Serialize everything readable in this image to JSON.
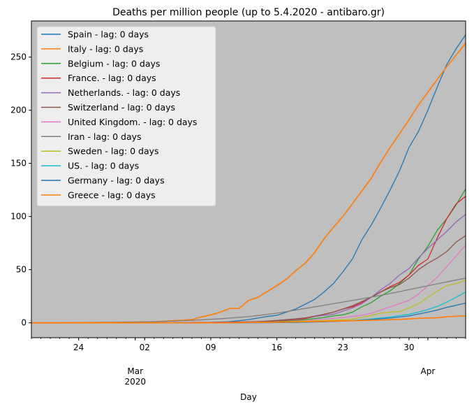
{
  "chart_data": {
    "type": "line",
    "title": "Deaths per million people (up to 5.4.2020 - antibaro.gr)",
    "xlabel": "Day",
    "ylabel": "",
    "x_start": "2020-02-19",
    "xlim": [
      "2020-02-19",
      "2020-04-05"
    ],
    "ylim": [
      -14,
      284
    ],
    "grid": false,
    "legend_position": "upper-left",
    "plot_background": "#bfbfbf",
    "x_major_ticks": [
      {
        "date": "2020-02-24",
        "label": "24"
      },
      {
        "date": "2020-03-02",
        "label": "02"
      },
      {
        "date": "2020-03-09",
        "label": "09"
      },
      {
        "date": "2020-03-16",
        "label": "16"
      },
      {
        "date": "2020-03-23",
        "label": "23"
      },
      {
        "date": "2020-03-30",
        "label": "30"
      }
    ],
    "x_month_labels": [
      {
        "date": "2020-03-01",
        "label": "Mar",
        "year": "2020"
      },
      {
        "date": "2020-04-01",
        "label": "Apr",
        "year": ""
      }
    ],
    "y_ticks": [
      0,
      50,
      100,
      150,
      200,
      250
    ],
    "y_tick_labels": [
      "0",
      "50",
      "100",
      "150",
      "200",
      "250"
    ],
    "series": [
      {
        "name": "Spain - lag: 0 days",
        "color": "#1f77b4",
        "points": [
          [
            "2020-02-19",
            0
          ],
          [
            "2020-03-03",
            0
          ],
          [
            "2020-03-09",
            0.3
          ],
          [
            "2020-03-11",
            1
          ],
          [
            "2020-03-13",
            3
          ],
          [
            "2020-03-14",
            4.5
          ],
          [
            "2020-03-15",
            6
          ],
          [
            "2020-03-16",
            7
          ],
          [
            "2020-03-17",
            10
          ],
          [
            "2020-03-18",
            13
          ],
          [
            "2020-03-19",
            17.5
          ],
          [
            "2020-03-20",
            22
          ],
          [
            "2020-03-21",
            29
          ],
          [
            "2020-03-22",
            37
          ],
          [
            "2020-03-23",
            48
          ],
          [
            "2020-03-24",
            60
          ],
          [
            "2020-03-25",
            78
          ],
          [
            "2020-03-26",
            92
          ],
          [
            "2020-03-27",
            108
          ],
          [
            "2020-03-28",
            125
          ],
          [
            "2020-03-29",
            143
          ],
          [
            "2020-03-30",
            165
          ],
          [
            "2020-03-31",
            180
          ],
          [
            "2020-04-01",
            200
          ],
          [
            "2020-04-02",
            222
          ],
          [
            "2020-04-03",
            243
          ],
          [
            "2020-04-04",
            258
          ],
          [
            "2020-04-05",
            271
          ]
        ]
      },
      {
        "name": "Italy - lag: 0 days",
        "color": "#ff7f0e",
        "points": [
          [
            "2020-02-19",
            0
          ],
          [
            "2020-02-22",
            0
          ],
          [
            "2020-02-25",
            0.2
          ],
          [
            "2020-02-28",
            0.5
          ],
          [
            "2020-03-01",
            0.7
          ],
          [
            "2020-03-03",
            1
          ],
          [
            "2020-03-05",
            2
          ],
          [
            "2020-03-07",
            3
          ],
          [
            "2020-03-08",
            5.5
          ],
          [
            "2020-03-09",
            7.5
          ],
          [
            "2020-03-10",
            10
          ],
          [
            "2020-03-11",
            13.5
          ],
          [
            "2020-03-12",
            13.5
          ],
          [
            "2020-03-13",
            21
          ],
          [
            "2020-03-14",
            24
          ],
          [
            "2020-03-15",
            29.5
          ],
          [
            "2020-03-16",
            35
          ],
          [
            "2020-03-17",
            41
          ],
          [
            "2020-03-18",
            49
          ],
          [
            "2020-03-19",
            56
          ],
          [
            "2020-03-20",
            66
          ],
          [
            "2020-03-21",
            79
          ],
          [
            "2020-03-22",
            90
          ],
          [
            "2020-03-23",
            100
          ],
          [
            "2020-03-24",
            112
          ],
          [
            "2020-03-25",
            124
          ],
          [
            "2020-03-26",
            136
          ],
          [
            "2020-03-27",
            151
          ],
          [
            "2020-03-28",
            165
          ],
          [
            "2020-03-29",
            178
          ],
          [
            "2020-03-30",
            191
          ],
          [
            "2020-03-31",
            205
          ],
          [
            "2020-04-01",
            217
          ],
          [
            "2020-04-02",
            229
          ],
          [
            "2020-04-03",
            241
          ],
          [
            "2020-04-04",
            252
          ],
          [
            "2020-04-05",
            263
          ]
        ]
      },
      {
        "name": "Belgium - lag: 0 days",
        "color": "#2ca02c",
        "points": [
          [
            "2020-02-19",
            0
          ],
          [
            "2020-03-10",
            0
          ],
          [
            "2020-03-14",
            0.5
          ],
          [
            "2020-03-18",
            2
          ],
          [
            "2020-03-20",
            4
          ],
          [
            "2020-03-21",
            5
          ],
          [
            "2020-03-22",
            6.5
          ],
          [
            "2020-03-23",
            7.5
          ],
          [
            "2020-03-24",
            10
          ],
          [
            "2020-03-25",
            15
          ],
          [
            "2020-03-26",
            19
          ],
          [
            "2020-03-27",
            25
          ],
          [
            "2020-03-28",
            30
          ],
          [
            "2020-03-29",
            37
          ],
          [
            "2020-03-30",
            45
          ],
          [
            "2020-03-31",
            60
          ],
          [
            "2020-04-01",
            72
          ],
          [
            "2020-04-02",
            87
          ],
          [
            "2020-04-03",
            98
          ],
          [
            "2020-04-04",
            111
          ],
          [
            "2020-04-05",
            126
          ]
        ]
      },
      {
        "name": "France. - lag: 0 days",
        "color": "#d62728",
        "points": [
          [
            "2020-02-19",
            0
          ],
          [
            "2020-03-06",
            0.1
          ],
          [
            "2020-03-10",
            0.5
          ],
          [
            "2020-03-14",
            1
          ],
          [
            "2020-03-16",
            2
          ],
          [
            "2020-03-18",
            3
          ],
          [
            "2020-03-19",
            4
          ],
          [
            "2020-03-20",
            6
          ],
          [
            "2020-03-21",
            8
          ],
          [
            "2020-03-22",
            10
          ],
          [
            "2020-03-23",
            13
          ],
          [
            "2020-03-24",
            15
          ],
          [
            "2020-03-25",
            19
          ],
          [
            "2020-03-26",
            24
          ],
          [
            "2020-03-27",
            29
          ],
          [
            "2020-03-28",
            34
          ],
          [
            "2020-03-29",
            38
          ],
          [
            "2020-03-30",
            45
          ],
          [
            "2020-03-31",
            54
          ],
          [
            "2020-04-01",
            60
          ],
          [
            "2020-04-02",
            80
          ],
          [
            "2020-04-03",
            98
          ],
          [
            "2020-04-04",
            112
          ],
          [
            "2020-04-05",
            119
          ]
        ]
      },
      {
        "name": "Netherlands. - lag: 0 days",
        "color": "#9467bd",
        "points": [
          [
            "2020-02-19",
            0
          ],
          [
            "2020-03-08",
            0
          ],
          [
            "2020-03-12",
            0.3
          ],
          [
            "2020-03-15",
            1.5
          ],
          [
            "2020-03-18",
            3.5
          ],
          [
            "2020-03-20",
            6
          ],
          [
            "2020-03-22",
            8
          ],
          [
            "2020-03-23",
            11
          ],
          [
            "2020-03-24",
            14
          ],
          [
            "2020-03-25",
            18
          ],
          [
            "2020-03-26",
            24
          ],
          [
            "2020-03-27",
            31
          ],
          [
            "2020-03-28",
            37
          ],
          [
            "2020-03-29",
            45
          ],
          [
            "2020-03-30",
            51
          ],
          [
            "2020-03-31",
            61
          ],
          [
            "2020-04-01",
            70
          ],
          [
            "2020-04-02",
            78
          ],
          [
            "2020-04-03",
            86
          ],
          [
            "2020-04-04",
            95
          ],
          [
            "2020-04-05",
            102
          ]
        ]
      },
      {
        "name": "Switzerland - lag: 0 days",
        "color": "#8c564b",
        "points": [
          [
            "2020-02-19",
            0
          ],
          [
            "2020-03-08",
            0
          ],
          [
            "2020-03-12",
            0.5
          ],
          [
            "2020-03-15",
            1.5
          ],
          [
            "2020-03-17",
            3
          ],
          [
            "2020-03-19",
            4.5
          ],
          [
            "2020-03-21",
            8
          ],
          [
            "2020-03-22",
            10
          ],
          [
            "2020-03-23",
            13
          ],
          [
            "2020-03-24",
            16
          ],
          [
            "2020-03-25",
            20
          ],
          [
            "2020-03-26",
            24
          ],
          [
            "2020-03-27",
            29
          ],
          [
            "2020-03-28",
            33
          ],
          [
            "2020-03-29",
            36
          ],
          [
            "2020-03-30",
            42
          ],
          [
            "2020-03-31",
            50
          ],
          [
            "2020-04-01",
            56
          ],
          [
            "2020-04-02",
            61
          ],
          [
            "2020-04-03",
            67
          ],
          [
            "2020-04-04",
            76
          ],
          [
            "2020-04-05",
            82
          ]
        ]
      },
      {
        "name": "United Kingdom. - lag: 0 days",
        "color": "#e377c2",
        "points": [
          [
            "2020-02-19",
            0
          ],
          [
            "2020-03-06",
            0
          ],
          [
            "2020-03-10",
            0.2
          ],
          [
            "2020-03-14",
            0.5
          ],
          [
            "2020-03-17",
            1
          ],
          [
            "2020-03-19",
            2
          ],
          [
            "2020-03-21",
            3.5
          ],
          [
            "2020-03-23",
            5
          ],
          [
            "2020-03-25",
            7
          ],
          [
            "2020-03-26",
            9
          ],
          [
            "2020-03-27",
            12
          ],
          [
            "2020-03-28",
            15
          ],
          [
            "2020-03-29",
            18
          ],
          [
            "2020-03-30",
            21
          ],
          [
            "2020-03-31",
            27
          ],
          [
            "2020-04-01",
            35
          ],
          [
            "2020-04-02",
            43
          ],
          [
            "2020-04-03",
            53
          ],
          [
            "2020-04-04",
            63
          ],
          [
            "2020-04-05",
            73
          ]
        ]
      },
      {
        "name": "Iran - lag: 0 days",
        "color": "#7f7f7f",
        "points": [
          [
            "2020-02-19",
            0
          ],
          [
            "2020-02-24",
            0.1
          ],
          [
            "2020-02-27",
            0.3
          ],
          [
            "2020-03-01",
            0.7
          ],
          [
            "2020-03-04",
            1.3
          ],
          [
            "2020-03-07",
            2.3
          ],
          [
            "2020-03-10",
            3.8
          ],
          [
            "2020-03-13",
            5.8
          ],
          [
            "2020-03-16",
            9
          ],
          [
            "2020-03-19",
            13.5
          ],
          [
            "2020-03-22",
            18
          ],
          [
            "2020-03-25",
            22.5
          ],
          [
            "2020-03-28",
            27.5
          ],
          [
            "2020-03-31",
            33
          ],
          [
            "2020-04-03",
            38.5
          ],
          [
            "2020-04-05",
            42
          ]
        ]
      },
      {
        "name": "Sweden - lag: 0 days",
        "color": "#bcbd22",
        "points": [
          [
            "2020-02-19",
            0
          ],
          [
            "2020-03-10",
            0
          ],
          [
            "2020-03-15",
            0.5
          ],
          [
            "2020-03-19",
            1.5
          ],
          [
            "2020-03-22",
            2.5
          ],
          [
            "2020-03-24",
            3.5
          ],
          [
            "2020-03-25",
            5
          ],
          [
            "2020-03-26",
            7
          ],
          [
            "2020-03-27",
            9
          ],
          [
            "2020-03-28",
            10
          ],
          [
            "2020-03-29",
            10.5
          ],
          [
            "2020-03-30",
            14
          ],
          [
            "2020-03-31",
            18
          ],
          [
            "2020-04-01",
            24
          ],
          [
            "2020-04-02",
            30
          ],
          [
            "2020-04-03",
            35
          ],
          [
            "2020-04-04",
            37
          ],
          [
            "2020-04-05",
            40
          ]
        ]
      },
      {
        "name": "US. - lag: 0 days",
        "color": "#17becf",
        "points": [
          [
            "2020-02-19",
            0
          ],
          [
            "2020-03-05",
            0
          ],
          [
            "2020-03-10",
            0.1
          ],
          [
            "2020-03-15",
            0.2
          ],
          [
            "2020-03-18",
            0.4
          ],
          [
            "2020-03-20",
            0.8
          ],
          [
            "2020-03-22",
            1.4
          ],
          [
            "2020-03-24",
            2.2
          ],
          [
            "2020-03-26",
            3.6
          ],
          [
            "2020-03-28",
            5.5
          ],
          [
            "2020-03-30",
            8
          ],
          [
            "2020-03-31",
            10
          ],
          [
            "2020-04-01",
            12.5
          ],
          [
            "2020-04-02",
            15.5
          ],
          [
            "2020-04-03",
            19.5
          ],
          [
            "2020-04-04",
            24
          ],
          [
            "2020-04-05",
            29
          ]
        ]
      },
      {
        "name": "Germany - lag: 0 days",
        "color": "#1f77b4",
        "points": [
          [
            "2020-02-19",
            0
          ],
          [
            "2020-03-08",
            0
          ],
          [
            "2020-03-14",
            0.1
          ],
          [
            "2020-03-18",
            0.4
          ],
          [
            "2020-03-21",
            1
          ],
          [
            "2020-03-24",
            2
          ],
          [
            "2020-03-26",
            3
          ],
          [
            "2020-03-28",
            4.5
          ],
          [
            "2020-03-30",
            6.5
          ],
          [
            "2020-04-01",
            10
          ],
          [
            "2020-04-02",
            12
          ],
          [
            "2020-04-03",
            14.5
          ],
          [
            "2020-04-04",
            16.5
          ],
          [
            "2020-04-05",
            18.5
          ]
        ]
      },
      {
        "name": "Greece - lag: 0 days",
        "color": "#ff7f0e",
        "points": [
          [
            "2020-02-19",
            0
          ],
          [
            "2020-03-10",
            0
          ],
          [
            "2020-03-13",
            0.3
          ],
          [
            "2020-03-17",
            0.7
          ],
          [
            "2020-03-20",
            1.2
          ],
          [
            "2020-03-23",
            1.8
          ],
          [
            "2020-03-26",
            2.4
          ],
          [
            "2020-03-29",
            3.2
          ],
          [
            "2020-03-31",
            4.2
          ],
          [
            "2020-04-02",
            4.8
          ],
          [
            "2020-04-03",
            5.7
          ],
          [
            "2020-04-05",
            6.6
          ]
        ]
      }
    ]
  }
}
